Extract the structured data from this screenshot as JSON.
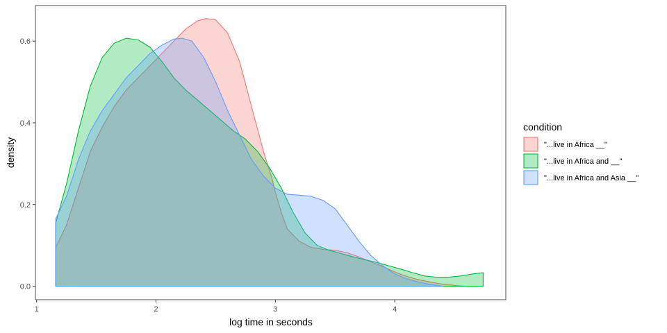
{
  "chart_data": {
    "type": "area",
    "subtype": "density",
    "xlabel": "log time in seconds",
    "ylabel": "density",
    "xlim": [
      0.99,
      4.93
    ],
    "ylim": [
      -0.033,
      0.687
    ],
    "x_ticks": [
      1,
      2,
      3,
      4
    ],
    "y_ticks": [
      0.0,
      0.2,
      0.4,
      0.6
    ],
    "y_tick_labels": [
      "0.0",
      "0.2",
      "0.4",
      "0.6"
    ],
    "grid": false,
    "legend": {
      "title": "condition",
      "position": "right"
    },
    "fill_opacity": 0.3,
    "series": [
      {
        "name": "\"...live in Africa __\"",
        "color": "#F8766D",
        "x": [
          1.16,
          1.25,
          1.35,
          1.45,
          1.55,
          1.65,
          1.75,
          1.85,
          1.95,
          2.05,
          2.15,
          2.25,
          2.35,
          2.42,
          2.5,
          2.6,
          2.7,
          2.8,
          2.9,
          2.97,
          3.0,
          3.05,
          3.1,
          3.2,
          3.3,
          3.4,
          3.5,
          3.6,
          3.7,
          3.8,
          3.9,
          4.0,
          4.1,
          4.2,
          4.3,
          4.4,
          4.5,
          4.58
        ],
        "y": [
          0.095,
          0.15,
          0.24,
          0.33,
          0.39,
          0.44,
          0.48,
          0.51,
          0.54,
          0.57,
          0.6,
          0.63,
          0.65,
          0.655,
          0.652,
          0.62,
          0.55,
          0.44,
          0.33,
          0.265,
          0.23,
          0.18,
          0.14,
          0.11,
          0.095,
          0.09,
          0.088,
          0.082,
          0.072,
          0.06,
          0.048,
          0.035,
          0.024,
          0.016,
          0.01,
          0.005,
          0.002,
          0.0
        ]
      },
      {
        "name": "\"...live in Africa and __\"",
        "color": "#00BA38",
        "x": [
          1.16,
          1.25,
          1.35,
          1.45,
          1.55,
          1.65,
          1.75,
          1.85,
          1.95,
          2.05,
          2.15,
          2.25,
          2.35,
          2.45,
          2.55,
          2.65,
          2.75,
          2.85,
          2.95,
          3.05,
          3.15,
          3.25,
          3.35,
          3.45,
          3.55,
          3.65,
          3.75,
          3.85,
          3.95,
          4.05,
          4.15,
          4.25,
          4.35,
          4.45,
          4.55,
          4.65,
          4.74
        ],
        "y": [
          0.155,
          0.25,
          0.38,
          0.49,
          0.56,
          0.595,
          0.607,
          0.603,
          0.585,
          0.55,
          0.51,
          0.48,
          0.455,
          0.43,
          0.405,
          0.38,
          0.36,
          0.33,
          0.29,
          0.24,
          0.18,
          0.13,
          0.1,
          0.088,
          0.08,
          0.072,
          0.065,
          0.058,
          0.05,
          0.042,
          0.033,
          0.025,
          0.022,
          0.022,
          0.025,
          0.03,
          0.033
        ]
      },
      {
        "name": "\"...live in Africa and Asia __\"",
        "color": "#619CFF",
        "x": [
          1.16,
          1.25,
          1.35,
          1.45,
          1.55,
          1.65,
          1.75,
          1.85,
          1.95,
          2.05,
          2.15,
          2.22,
          2.3,
          2.4,
          2.5,
          2.6,
          2.7,
          2.8,
          2.9,
          3.0,
          3.1,
          3.2,
          3.3,
          3.4,
          3.5,
          3.6,
          3.7,
          3.8,
          3.9,
          4.0,
          4.1,
          4.2,
          4.3,
          4.4
        ],
        "y": [
          0.165,
          0.22,
          0.31,
          0.38,
          0.43,
          0.47,
          0.51,
          0.54,
          0.57,
          0.59,
          0.605,
          0.607,
          0.6,
          0.56,
          0.5,
          0.43,
          0.37,
          0.31,
          0.27,
          0.24,
          0.225,
          0.223,
          0.22,
          0.21,
          0.19,
          0.15,
          0.11,
          0.075,
          0.05,
          0.03,
          0.018,
          0.01,
          0.004,
          0.0
        ]
      }
    ]
  }
}
